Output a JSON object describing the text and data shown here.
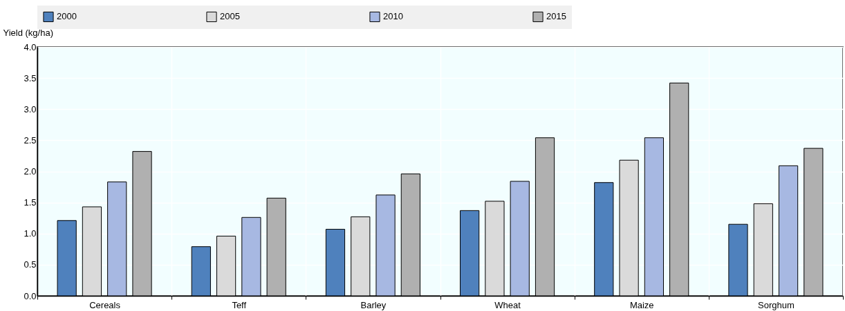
{
  "chart_data": {
    "type": "bar",
    "ylabel": "Yield (kg/ha)",
    "categories": [
      "Cereals",
      "Teff",
      "Barley",
      "Wheat",
      "Maize",
      "Sorghum"
    ],
    "series": [
      {
        "name": "2000",
        "color": "#4f81bd",
        "values": [
          1.21,
          0.79,
          1.07,
          1.37,
          1.82,
          1.15
        ]
      },
      {
        "name": "2005",
        "color": "#dadada",
        "values": [
          1.43,
          0.96,
          1.27,
          1.52,
          2.18,
          1.48
        ]
      },
      {
        "name": "2010",
        "color": "#a7b8e2",
        "values": [
          1.83,
          1.26,
          1.62,
          1.84,
          2.54,
          2.09
        ]
      },
      {
        "name": "2015",
        "color": "#b0b0b0",
        "values": [
          2.32,
          1.57,
          1.96,
          2.54,
          3.42,
          2.37
        ]
      }
    ],
    "ylim": [
      0,
      4
    ],
    "yticks": [
      {
        "value": 0,
        "label": "0.0"
      },
      0.5,
      {
        "value": 1,
        "label": "1.0"
      },
      1.5,
      {
        "value": 2,
        "label": "2.0"
      },
      2.5,
      {
        "value": 3,
        "label": "3.0"
      },
      3.5,
      {
        "value": 4,
        "label": "4.0"
      }
    ],
    "grid": true,
    "legend": "top"
  }
}
